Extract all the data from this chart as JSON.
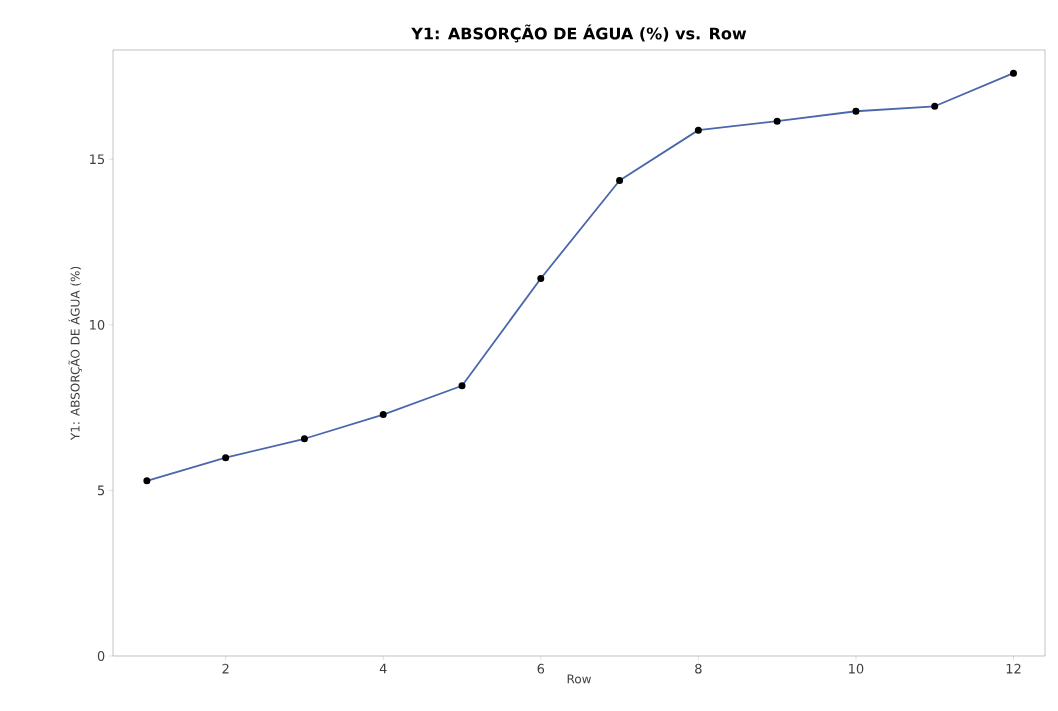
{
  "chart_data": {
    "type": "line",
    "title": "Y1: ABSORÇÃO DE ÁGUA (%) vs. Row",
    "xlabel": "Row",
    "ylabel": "Y1: ABSORÇÃO DE ÁGUA (%)",
    "x": [
      1,
      2,
      3,
      4,
      5,
      6,
      7,
      8,
      9,
      10,
      11,
      12
    ],
    "series": [
      {
        "color": "#4a66ac",
        "values": [
          5.29,
          5.99,
          6.56,
          7.29,
          8.16,
          11.4,
          14.36,
          15.88,
          16.15,
          16.45,
          16.6,
          17.6
        ]
      }
    ],
    "xlim": [
      0.57,
      12.4
    ],
    "ylim": [
      0,
      18.3
    ],
    "xticks": [
      2,
      4,
      6,
      8,
      10,
      12
    ],
    "yticks": [
      0,
      5,
      10,
      15
    ],
    "grid": false,
    "marker": "circle",
    "line_style": "solid"
  }
}
